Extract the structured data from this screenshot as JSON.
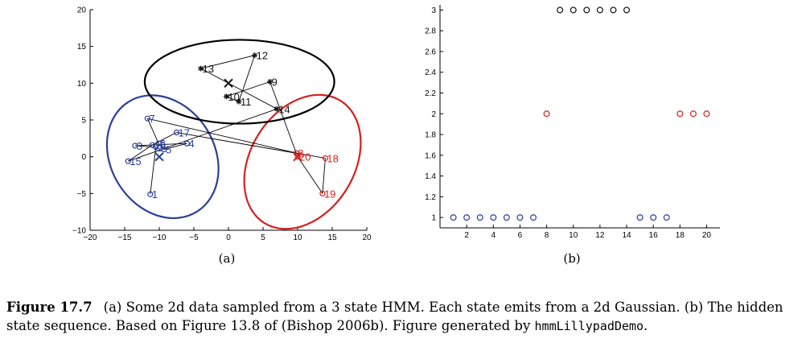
{
  "chart_data": [
    {
      "panel_label": "(a)",
      "type": "scatter",
      "xlim": [
        -20,
        20
      ],
      "ylim": [
        -10,
        20
      ],
      "xticks": [
        -20,
        -15,
        -10,
        -5,
        0,
        5,
        10,
        15,
        20
      ],
      "yticks": [
        -10,
        -5,
        0,
        5,
        10,
        15,
        20
      ],
      "tick_labels_x": [
        "−20",
        "−15",
        "−10",
        "−5",
        "0",
        "5",
        "10",
        "15",
        "20"
      ],
      "tick_labels_y": [
        "−10",
        "−5",
        "0",
        "5",
        "10",
        "15",
        "20"
      ],
      "state_colors": {
        "1": "#2a3f9c",
        "2": "#d42020",
        "3": "#111111"
      },
      "state_markers": {
        "1": "o",
        "2": "o",
        "3": "*"
      },
      "points": [
        {
          "t": 1,
          "state": 1,
          "x": -11.3,
          "y": -5.1
        },
        {
          "t": 2,
          "state": 1,
          "x": -10.5,
          "y": 1.3
        },
        {
          "t": 3,
          "state": 1,
          "x": -13.5,
          "y": 1.5
        },
        {
          "t": 4,
          "state": 1,
          "x": -6.0,
          "y": 1.8
        },
        {
          "t": 5,
          "state": 1,
          "x": -9.3,
          "y": 1.0
        },
        {
          "t": 6,
          "state": 1,
          "x": -10.1,
          "y": 1.8
        },
        {
          "t": 7,
          "state": 1,
          "x": -11.7,
          "y": 5.2
        },
        {
          "t": 8,
          "state": 2,
          "x": 9.8,
          "y": 0.5
        },
        {
          "t": 9,
          "state": 3,
          "x": 6.0,
          "y": 10.2
        },
        {
          "t": 10,
          "state": 3,
          "x": -0.3,
          "y": 8.2
        },
        {
          "t": 11,
          "state": 3,
          "x": 1.5,
          "y": 7.5
        },
        {
          "t": 12,
          "state": 3,
          "x": 3.8,
          "y": 13.8
        },
        {
          "t": 13,
          "state": 3,
          "x": -4.0,
          "y": 12.0
        },
        {
          "t": 14,
          "state": 3,
          "x": 7.0,
          "y": 6.5
        },
        {
          "t": 15,
          "state": 1,
          "x": -14.5,
          "y": -0.6
        },
        {
          "t": 16,
          "state": 1,
          "x": -11.0,
          "y": 1.6
        },
        {
          "t": 17,
          "state": 1,
          "x": -7.5,
          "y": 3.3
        },
        {
          "t": 18,
          "state": 2,
          "x": 14.0,
          "y": -0.2
        },
        {
          "t": 19,
          "state": 2,
          "x": 13.6,
          "y": -5.0
        },
        {
          "t": 20,
          "state": 2,
          "x": 10.0,
          "y": 0.0
        }
      ],
      "state_means": [
        {
          "state": 1,
          "x": -10.0,
          "y": 0.0
        },
        {
          "state": 2,
          "x": 10.0,
          "y": 0.0
        },
        {
          "state": 3,
          "x": 0.0,
          "y": 10.0
        }
      ],
      "ellipses": [
        {
          "state": 1,
          "cx": -9.5,
          "cy": 0.0,
          "rx": 7.5,
          "ry": 8.8,
          "angle_deg": -32,
          "color": "#2a3f9c"
        },
        {
          "state": 2,
          "cx": 10.7,
          "cy": -0.7,
          "rx": 7.5,
          "ry": 9.8,
          "angle_deg": 32,
          "color": "#d42020"
        },
        {
          "state": 3,
          "cx": 1.6,
          "cy": 10.2,
          "rx": 13.7,
          "ry": 5.7,
          "angle_deg": 0,
          "color": "#000000"
        }
      ]
    },
    {
      "panel_label": "(b)",
      "type": "scatter",
      "xlim": [
        0,
        21
      ],
      "ylim": [
        0.9,
        3.05
      ],
      "xticks": [
        2,
        4,
        6,
        8,
        10,
        12,
        14,
        16,
        18,
        20
      ],
      "yticks": [
        1,
        1.2,
        1.4,
        1.6,
        1.8,
        2,
        2.2,
        2.4,
        2.6,
        2.8,
        3
      ],
      "tick_labels_x": [
        "2",
        "4",
        "6",
        "8",
        "10",
        "12",
        "14",
        "16",
        "18",
        "20"
      ],
      "tick_labels_y": [
        "1",
        "1.2",
        "1.4",
        "1.6",
        "1.8",
        "2",
        "2.2",
        "2.4",
        "2.6",
        "2.8",
        "3"
      ],
      "x": [
        1,
        2,
        3,
        4,
        5,
        6,
        7,
        8,
        9,
        10,
        11,
        12,
        13,
        14,
        15,
        16,
        17,
        18,
        19,
        20
      ],
      "y": [
        1,
        1,
        1,
        1,
        1,
        1,
        1,
        2,
        3,
        3,
        3,
        3,
        3,
        3,
        1,
        1,
        1,
        2,
        2,
        2
      ],
      "state_colors": {
        "1": "#2a3f9c",
        "2": "#d42020",
        "3": "#111111"
      }
    }
  ],
  "caption": {
    "figure_number": "Figure 17.7",
    "text": "(a) Some 2d data sampled from a 3 state HMM. Each state emits from a 2d Gaussian. (b) The hidden state sequence. Based on Figure 13.8 of (Bishop 2006b). Figure generated by",
    "code": "hmmLillypadDemo",
    "end": "."
  }
}
